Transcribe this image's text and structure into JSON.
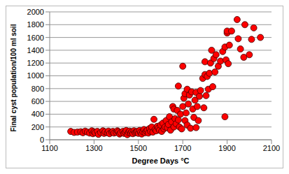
{
  "chart_data": {
    "type": "scatter",
    "x_label": "Degree Days °C",
    "y_label": "Final cyst population/100 ml soil",
    "x": [
      1195,
      1210,
      1225,
      1240,
      1250,
      1260,
      1270,
      1280,
      1290,
      1295,
      1300,
      1305,
      1315,
      1320,
      1330,
      1340,
      1345,
      1350,
      1360,
      1365,
      1370,
      1380,
      1385,
      1390,
      1400,
      1405,
      1410,
      1415,
      1420,
      1430,
      1435,
      1440,
      1445,
      1450,
      1455,
      1460,
      1465,
      1470,
      1475,
      1480,
      1485,
      1490,
      1495,
      1500,
      1505,
      1510,
      1515,
      1520,
      1525,
      1530,
      1535,
      1540,
      1545,
      1550,
      1555,
      1560,
      1565,
      1570,
      1575,
      1580,
      1585,
      1590,
      1595,
      1600,
      1605,
      1610,
      1615,
      1620,
      1625,
      1630,
      1635,
      1640,
      1645,
      1650,
      1655,
      1660,
      1660,
      1665,
      1670,
      1675,
      1680,
      1680,
      1685,
      1690,
      1695,
      1700,
      1700,
      1705,
      1710,
      1710,
      1715,
      1720,
      1720,
      1725,
      1730,
      1735,
      1740,
      1745,
      1750,
      1755,
      1760,
      1760,
      1765,
      1770,
      1775,
      1780,
      1790,
      1795,
      1800,
      1800,
      1805,
      1810,
      1815,
      1820,
      1825,
      1830,
      1835,
      1840,
      1845,
      1850,
      1860,
      1870,
      1880,
      1890,
      1890,
      1895,
      1900,
      1900,
      1905,
      1910,
      1920,
      1945,
      1950,
      1960,
      1975,
      1980,
      2000,
      2010,
      2020,
      2050
    ],
    "values": [
      130,
      115,
      120,
      125,
      110,
      135,
      120,
      105,
      140,
      95,
      125,
      110,
      130,
      85,
      115,
      140,
      100,
      125,
      110,
      135,
      95,
      120,
      130,
      105,
      115,
      140,
      125,
      90,
      110,
      130,
      100,
      120,
      145,
      80,
      115,
      135,
      105,
      125,
      95,
      140,
      110,
      120,
      130,
      100,
      145,
      115,
      90,
      125,
      160,
      110,
      135,
      150,
      105,
      175,
      130,
      200,
      120,
      320,
      160,
      140,
      210,
      180,
      150,
      230,
      130,
      260,
      170,
      200,
      300,
      190,
      240,
      360,
      150,
      280,
      520,
      200,
      480,
      330,
      250,
      460,
      310,
      840,
      200,
      400,
      170,
      520,
      1150,
      650,
      300,
      720,
      420,
      230,
      790,
      560,
      700,
      180,
      750,
      480,
      350,
      620,
      190,
      740,
      520,
      300,
      680,
      770,
      960,
      500,
      1220,
      1020,
      690,
      990,
      790,
      1040,
      1200,
      1400,
      830,
      1270,
      1060,
      1330,
      1150,
      1230,
      1380,
      360,
      1450,
      1250,
      1670,
      1700,
      1190,
      1480,
      1700,
      1880,
      1580,
      1420,
      1290,
      1800,
      1330,
      1570,
      1750,
      1600
    ],
    "color": "#ff0000",
    "marker": "circle",
    "xlim": [
      1100,
      2100
    ],
    "xticks": [
      1100,
      1300,
      1500,
      1700,
      1900,
      2100
    ],
    "ylim": [
      0,
      2000
    ],
    "yticks": [
      0,
      200,
      400,
      600,
      800,
      1000,
      1200,
      1400,
      1600,
      1800,
      2000
    ],
    "grid": true
  }
}
